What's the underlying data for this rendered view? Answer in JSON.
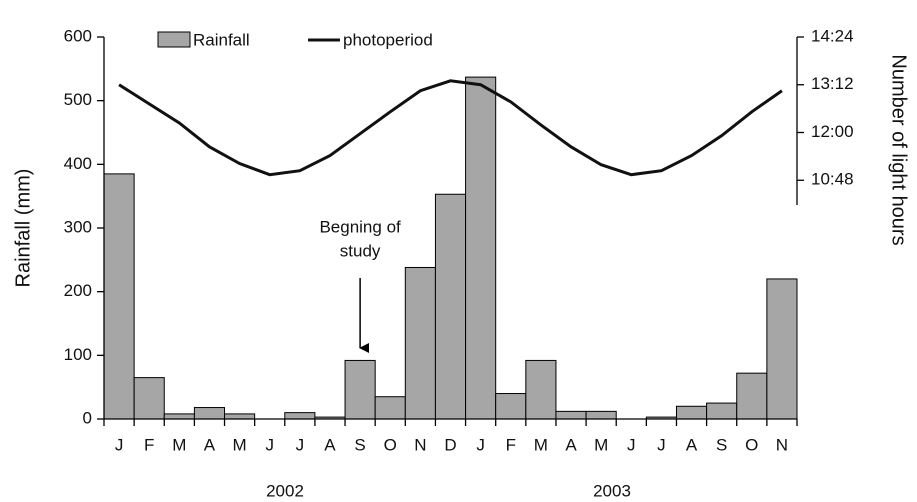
{
  "chart_data": {
    "type": "bar_line",
    "categories": [
      "J",
      "F",
      "M",
      "A",
      "M",
      "J",
      "J",
      "A",
      "S",
      "O",
      "N",
      "D",
      "J",
      "F",
      "M",
      "A",
      "M",
      "J",
      "J",
      "A",
      "S",
      "O",
      "N"
    ],
    "years": [
      "2002",
      "2003"
    ],
    "series": [
      {
        "name": "Rainfall",
        "type": "bar",
        "color": "#a6a6a6",
        "values": [
          385,
          65,
          8,
          18,
          8,
          0,
          10,
          3,
          92,
          35,
          238,
          353,
          537,
          40,
          92,
          12,
          12,
          0,
          3,
          20,
          25,
          72,
          220
        ]
      },
      {
        "name": "photoperiod",
        "type": "line",
        "axis": "y2",
        "color": "#111111",
        "values": [
          13.2,
          12.72,
          12.24,
          11.64,
          11.22,
          10.94,
          11.04,
          11.42,
          11.97,
          12.52,
          13.05,
          13.3,
          13.2,
          12.77,
          12.19,
          11.64,
          11.19,
          10.94,
          11.04,
          11.42,
          11.92,
          12.52,
          13.05
        ]
      }
    ],
    "y_label": "Rainfall (mm)",
    "y2_label": "Number of light hours",
    "annotation": [
      "Begning of",
      "study"
    ],
    "annotation_index": 8,
    "ylim": [
      0,
      600
    ],
    "yticks": [
      0,
      100,
      200,
      300,
      400,
      500,
      600
    ],
    "y2lim": [
      4.8,
      14.4
    ],
    "y2ticks": [
      {
        "value": 10.8,
        "label": "10:48"
      },
      {
        "value": 12,
        "label": "12:00"
      },
      {
        "value": 13.2,
        "label": "13:12"
      },
      {
        "value": 14.4,
        "label": "14:24"
      }
    ]
  }
}
